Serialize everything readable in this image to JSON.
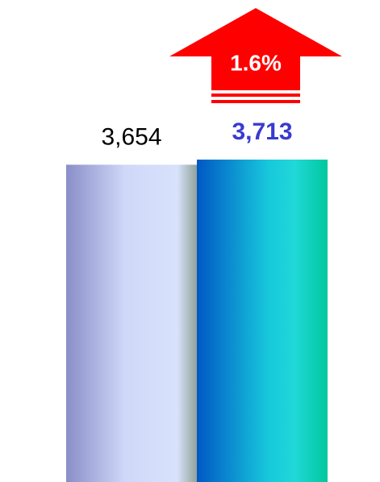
{
  "chart_data": {
    "type": "bar",
    "categories": [
      null,
      null
    ],
    "values": [
      3654,
      3713
    ],
    "value_labels": [
      "3,654",
      "3,713"
    ],
    "label_colors": [
      "#000000",
      "#3a3ad0"
    ],
    "annotation": "1.6%"
  }
}
